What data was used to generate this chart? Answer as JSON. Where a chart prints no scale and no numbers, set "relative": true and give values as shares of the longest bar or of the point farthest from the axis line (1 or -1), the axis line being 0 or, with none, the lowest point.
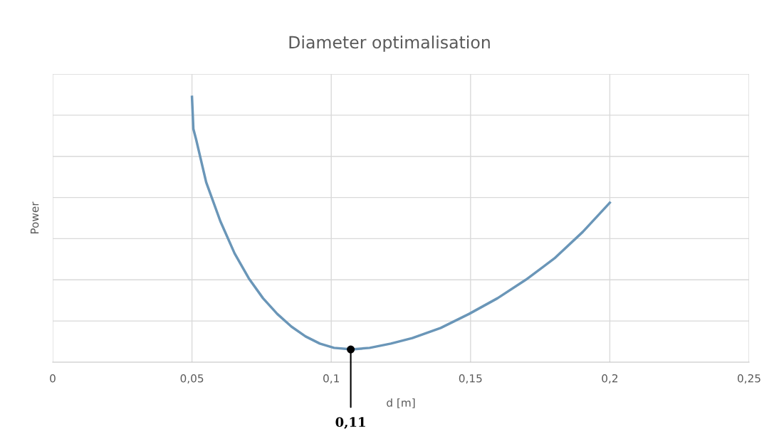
{
  "chart_data": {
    "type": "line",
    "title": "Diameter optimalisation",
    "xlabel": "d [m]",
    "ylabel": "Power",
    "relative": true,
    "x": [
      0.05,
      0.0505,
      0.0515,
      0.0551,
      0.0602,
      0.0653,
      0.0704,
      0.0755,
      0.0806,
      0.0857,
      0.0908,
      0.0959,
      0.101,
      0.1074,
      0.1138,
      0.1214,
      0.1291,
      0.1393,
      0.1495,
      0.1597,
      0.1699,
      0.1801,
      0.1903,
      0.2
    ],
    "series": [
      {
        "color": "#6a96b8",
        "values": [
          1.0,
          0.879,
          0.839,
          0.678,
          0.531,
          0.41,
          0.316,
          0.241,
          0.182,
          0.134,
          0.097,
          0.07,
          0.054,
          0.048,
          0.054,
          0.07,
          0.091,
          0.129,
          0.182,
          0.241,
          0.311,
          0.391,
          0.491,
          0.601
        ]
      }
    ],
    "xlim": [
      0,
      0.25
    ],
    "xticks": [
      0,
      {
        "value": 0.05,
        "label": "0,05"
      },
      {
        "value": 0.1,
        "label": "0,1"
      },
      {
        "value": 0.15,
        "label": "0,15"
      },
      {
        "value": 0.2,
        "label": "0,2"
      },
      {
        "value": 0.25,
        "label": "0,25"
      }
    ],
    "tick_labels": "x",
    "grid": true,
    "marker": "none",
    "line_style": "solid",
    "annotations": [
      {
        "text": "0,11",
        "x": 0.107,
        "y": 0.048
      }
    ]
  }
}
